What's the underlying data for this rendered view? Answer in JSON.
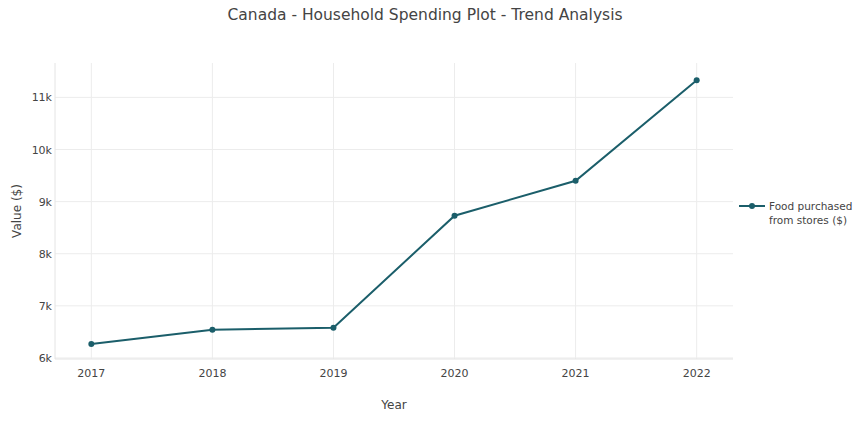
{
  "chart_data": {
    "type": "line",
    "title": "Canada - Household Spending Plot - Trend Analysis",
    "x_label": "Year",
    "y_label": "Value ($)",
    "x": [
      2017,
      2018,
      2019,
      2020,
      2021,
      2022
    ],
    "series": [
      {
        "name": "Food purchased from stores ($)",
        "color": "#1b5e6a",
        "marker": "circle",
        "line_style": "solid",
        "values": [
          6270,
          6540,
          6580,
          8730,
          9400,
          11330
        ]
      }
    ],
    "xlim": [
      2016.7,
      2022.3
    ],
    "xticks": [
      2017,
      2018,
      2019,
      2020,
      2021,
      2022
    ],
    "ylim": [
      5980,
      11660
    ],
    "yticks": [
      {
        "value": 6000,
        "label": "6k"
      },
      {
        "value": 7000,
        "label": "7k"
      },
      {
        "value": 8000,
        "label": "8k"
      },
      {
        "value": 9000,
        "label": "9k"
      },
      {
        "value": 10000,
        "label": "10k"
      },
      {
        "value": 11000,
        "label": "11k"
      }
    ],
    "grid": true,
    "legend": "right"
  }
}
